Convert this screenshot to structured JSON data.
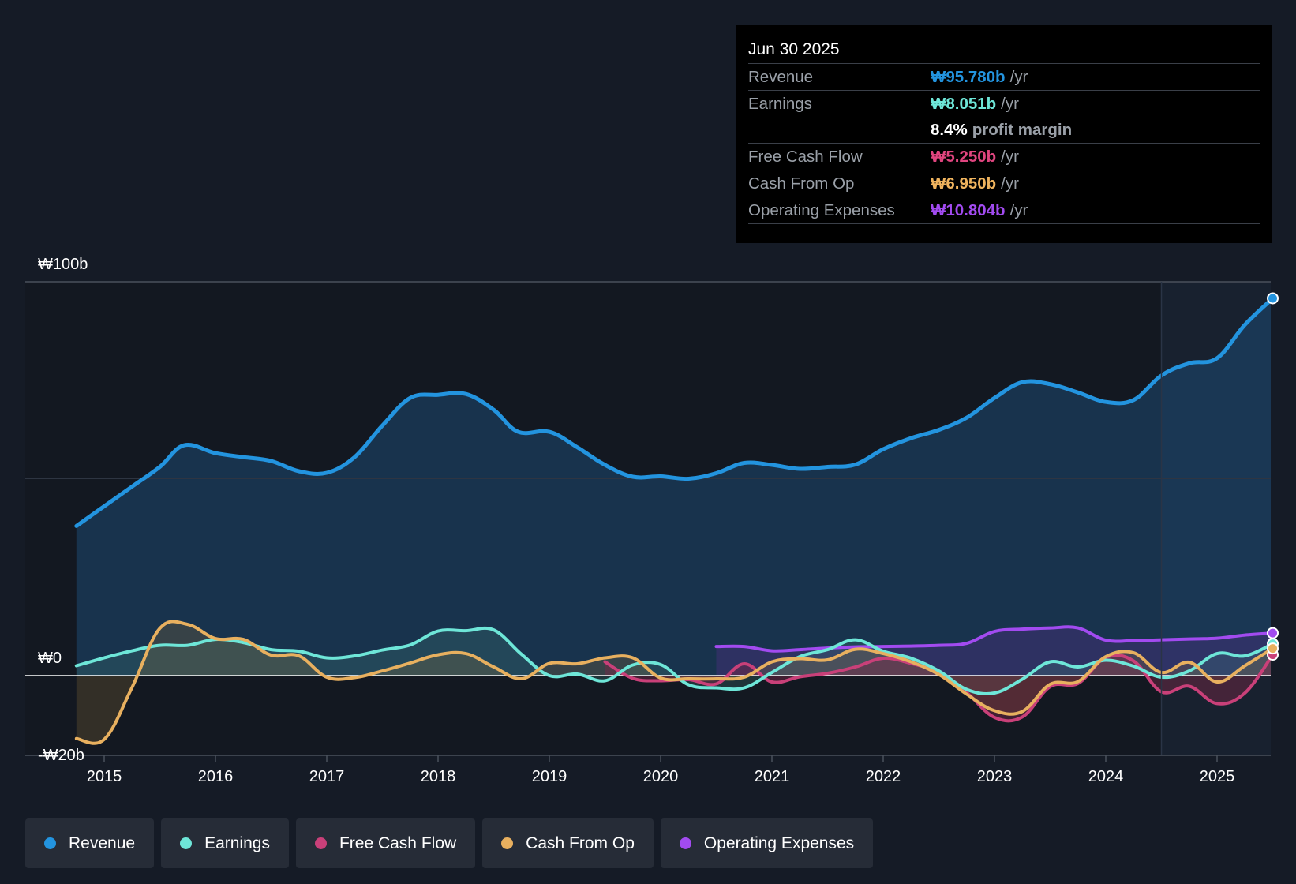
{
  "tooltip": {
    "date": "Jun 30 2025",
    "rows": [
      {
        "label": "Revenue",
        "value": "₩95.780b",
        "unit": "/yr",
        "color": "#2394df"
      },
      {
        "label": "Earnings",
        "value": "₩8.051b",
        "unit": "/yr",
        "color": "#6ee6d8"
      },
      {
        "label": "",
        "margin_value": "8.4%",
        "margin_text": "profit margin"
      },
      {
        "label": "Free Cash Flow",
        "value": "₩5.250b",
        "unit": "/yr",
        "color": "#e0457f"
      },
      {
        "label": "Cash From Op",
        "value": "₩6.950b",
        "unit": "/yr",
        "color": "#f0b45e"
      },
      {
        "label": "Operating Expenses",
        "value": "₩10.804b",
        "unit": "/yr",
        "color": "#a24bf0"
      }
    ]
  },
  "legend": [
    {
      "label": "Revenue",
      "color": "#2394df"
    },
    {
      "label": "Earnings",
      "color": "#6ee6d8"
    },
    {
      "label": "Free Cash Flow",
      "color": "#c94079"
    },
    {
      "label": "Cash From Op",
      "color": "#e8b05f"
    },
    {
      "label": "Operating Expenses",
      "color": "#a24bf0"
    }
  ],
  "chart_data": {
    "type": "line",
    "title": "",
    "xlabel": "",
    "ylabel": "",
    "xlim": [
      2014.3,
      2025.5
    ],
    "ylim": [
      -20,
      100
    ],
    "y_tick_labels": [
      {
        "value": 100,
        "label": "₩100b"
      },
      {
        "value": 0,
        "label": "₩0"
      },
      {
        "value": -20,
        "label": "-₩20b"
      }
    ],
    "x_ticks": [
      {
        "value": 2015,
        "label": "2015"
      },
      {
        "value": 2016,
        "label": "2016"
      },
      {
        "value": 2017,
        "label": "2017"
      },
      {
        "value": 2018,
        "label": "2018"
      },
      {
        "value": 2019,
        "label": "2019"
      },
      {
        "value": 2020,
        "label": "2020"
      },
      {
        "value": 2021,
        "label": "2021"
      },
      {
        "value": 2022,
        "label": "2022"
      },
      {
        "value": 2023,
        "label": "2023"
      },
      {
        "value": 2024,
        "label": "2024"
      },
      {
        "value": 2025,
        "label": "2025"
      }
    ],
    "forecast_start": 2024.5,
    "colors": {
      "revenue": "#2394df",
      "earnings": "#6ee6d8",
      "fcf": "#c94079",
      "cfo": "#e8b05f",
      "opex": "#a24bf0"
    },
    "series": [
      {
        "key": "revenue",
        "name": "Revenue",
        "x": [
          2014.75,
          2015.0,
          2015.25,
          2015.5,
          2015.72,
          2016.0,
          2016.25,
          2016.5,
          2016.75,
          2017.0,
          2017.25,
          2017.5,
          2017.75,
          2018.0,
          2018.25,
          2018.5,
          2018.72,
          2019.0,
          2019.25,
          2019.5,
          2019.75,
          2020.0,
          2020.25,
          2020.5,
          2020.75,
          2021.0,
          2021.25,
          2021.5,
          2021.75,
          2022.0,
          2022.25,
          2022.5,
          2022.75,
          2023.0,
          2023.25,
          2023.5,
          2023.75,
          2024.0,
          2024.25,
          2024.5,
          2024.75,
          2025.0,
          2025.25,
          2025.5
        ],
        "values": [
          38,
          43,
          48,
          53,
          58.5,
          56.5,
          55.5,
          54.5,
          51.9,
          51.5,
          55.5,
          63.5,
          70.5,
          71.3,
          71.5,
          67.5,
          61.9,
          61.9,
          58,
          53.5,
          50.5,
          50.6,
          50,
          51.4,
          54,
          53.5,
          52.5,
          53,
          53.6,
          57.5,
          60.3,
          62.4,
          65.5,
          70.5,
          74.5,
          74,
          71.9,
          69.5,
          70,
          76.2,
          79.3,
          80.6,
          89.1,
          95.8
        ]
      },
      {
        "key": "earnings",
        "name": "Earnings",
        "x": [
          2014.75,
          2015.0,
          2015.25,
          2015.5,
          2015.75,
          2016.0,
          2016.25,
          2016.5,
          2016.75,
          2017.0,
          2017.25,
          2017.5,
          2017.75,
          2018.0,
          2018.25,
          2018.5,
          2018.75,
          2019.0,
          2019.25,
          2019.5,
          2019.75,
          2020.0,
          2020.25,
          2020.5,
          2020.75,
          2021.0,
          2021.25,
          2021.5,
          2021.75,
          2022.0,
          2022.25,
          2022.5,
          2022.75,
          2023.0,
          2023.25,
          2023.5,
          2023.75,
          2024.0,
          2024.25,
          2024.5,
          2024.75,
          2025.0,
          2025.25,
          2025.5
        ],
        "values": [
          2.5,
          4.5,
          6.3,
          7.7,
          7.7,
          9.2,
          8.4,
          6.6,
          6.2,
          4.5,
          5,
          6.5,
          7.8,
          11.3,
          11.4,
          11.6,
          5.4,
          0,
          0.4,
          -1.3,
          2.7,
          2.8,
          -2.3,
          -3.1,
          -3.1,
          0.8,
          4.8,
          6.6,
          9.1,
          6.2,
          4.4,
          1.2,
          -3.5,
          -4.4,
          -0.9,
          3.5,
          2.2,
          3.9,
          2.4,
          -0.4,
          1.2,
          5.6,
          5,
          8.1
        ]
      },
      {
        "key": "fcf",
        "name": "Free Cash Flow",
        "x": [
          2019.5,
          2019.75,
          2020.0,
          2020.25,
          2020.5,
          2020.75,
          2021.0,
          2021.25,
          2021.5,
          2021.75,
          2022.0,
          2022.25,
          2022.5,
          2022.75,
          2023.0,
          2023.25,
          2023.5,
          2023.75,
          2024.0,
          2024.25,
          2024.5,
          2024.75,
          2025.0,
          2025.25,
          2025.5
        ],
        "values": [
          3.5,
          -0.7,
          -1.3,
          -1,
          -2.1,
          3,
          -1.6,
          -0.3,
          0.6,
          2.2,
          4.4,
          3.1,
          0.8,
          -4.3,
          -10.6,
          -10.5,
          -2.8,
          -2,
          4.6,
          3.7,
          -4.1,
          -2.7,
          -7.1,
          -4.4,
          5.3
        ]
      },
      {
        "key": "cfo",
        "name": "Cash From Op",
        "x": [
          2014.75,
          2015.0,
          2015.25,
          2015.5,
          2015.75,
          2016.0,
          2016.25,
          2016.5,
          2016.75,
          2017.0,
          2017.25,
          2017.5,
          2017.75,
          2018.0,
          2018.25,
          2018.5,
          2018.75,
          2019.0,
          2019.25,
          2019.5,
          2019.75,
          2020.0,
          2020.25,
          2020.5,
          2020.75,
          2021.0,
          2021.25,
          2021.5,
          2021.75,
          2022.0,
          2022.25,
          2022.5,
          2022.75,
          2023.0,
          2023.25,
          2023.5,
          2023.75,
          2024.0,
          2024.25,
          2024.5,
          2024.75,
          2025.0,
          2025.25,
          2025.5
        ],
        "values": [
          -16,
          -16.2,
          -3,
          12,
          13,
          9.4,
          9.2,
          5.2,
          5,
          -0.4,
          -0.5,
          1.2,
          3.2,
          5.3,
          5.6,
          2.2,
          -0.8,
          3.1,
          3,
          4.5,
          4.5,
          -0.6,
          -0.8,
          -0.8,
          -0.4,
          3.5,
          4.3,
          4,
          6.7,
          5.6,
          3.5,
          0.3,
          -4.7,
          -8.9,
          -9.1,
          -2.2,
          -1.5,
          4.8,
          5.8,
          0.8,
          3.4,
          -1.6,
          2.5,
          6.9
        ]
      },
      {
        "key": "opex",
        "name": "Operating Expenses",
        "x": [
          2020.5,
          2020.75,
          2021.0,
          2021.25,
          2021.5,
          2021.75,
          2022.0,
          2022.25,
          2022.5,
          2022.75,
          2023.0,
          2023.25,
          2023.5,
          2023.75,
          2024.0,
          2024.25,
          2024.5,
          2024.75,
          2025.0,
          2025.25,
          2025.5
        ],
        "values": [
          7.4,
          7.4,
          6.3,
          6.6,
          7,
          7.3,
          7.4,
          7.5,
          7.7,
          8.2,
          11.2,
          11.8,
          12.1,
          12.1,
          9,
          8.9,
          9.1,
          9.3,
          9.5,
          10.3,
          10.8
        ]
      }
    ],
    "end_markers": [
      "revenue",
      "earnings",
      "fcf",
      "cfo",
      "opex"
    ]
  }
}
